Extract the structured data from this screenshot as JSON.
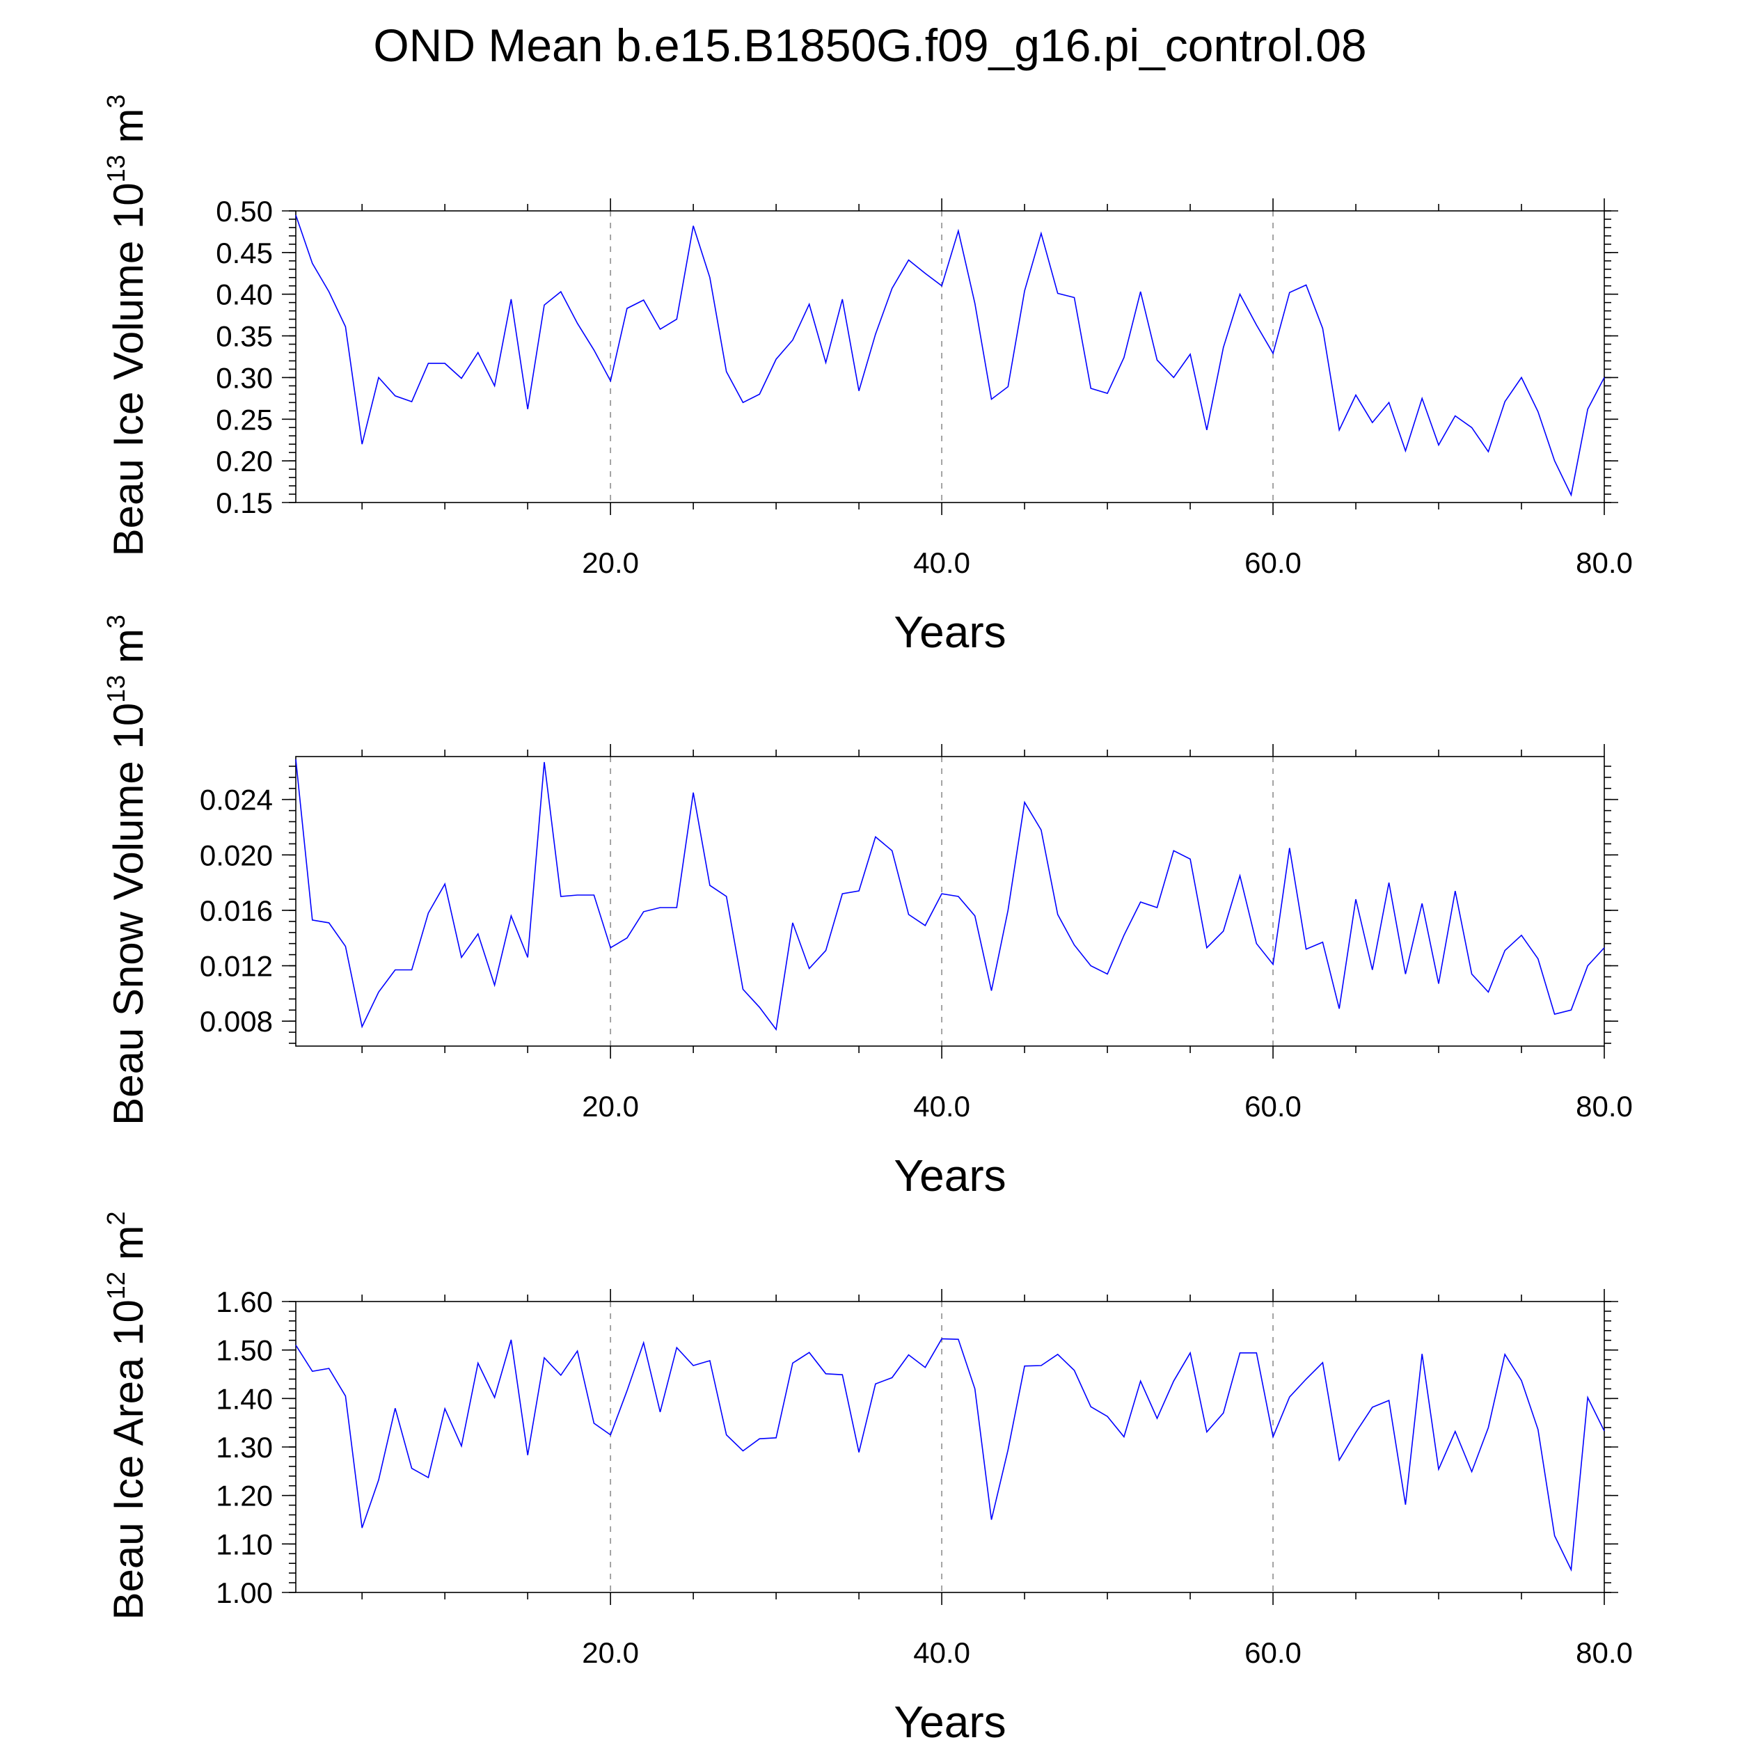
{
  "title": "OND Mean b.e15.B1850G.f09_g16.pi_control.08",
  "colors": {
    "series": "#0000ff",
    "grid": "#999999",
    "axis": "#000000"
  },
  "chart_data": [
    {
      "type": "line",
      "id": "ice-volume",
      "xlabel": "Years",
      "ylabel": {
        "main": "Beau Ice Volume 10",
        "sup": "13",
        "unit": " m",
        "unitsup": "3"
      },
      "xlim": [
        1,
        80
      ],
      "ylim": [
        0.15,
        0.5
      ],
      "yticks": [
        0.15,
        0.2,
        0.25,
        0.3,
        0.35,
        0.4,
        0.45,
        0.5
      ],
      "ytick_labels": [
        "0.15",
        "0.20",
        "0.25",
        "0.30",
        "0.35",
        "0.40",
        "0.45",
        "0.50"
      ],
      "xticks": [
        20,
        40,
        60,
        80
      ],
      "xtick_labels": [
        "20.0",
        "40.0",
        "60.0",
        "80.0"
      ],
      "values": [
        0.495,
        0.437,
        0.403,
        0.361,
        0.22,
        0.3,
        0.278,
        0.271,
        0.317,
        0.317,
        0.299,
        0.33,
        0.29,
        0.394,
        0.262,
        0.387,
        0.403,
        0.365,
        0.333,
        0.296,
        0.383,
        0.393,
        0.358,
        0.37,
        0.482,
        0.42,
        0.307,
        0.27,
        0.28,
        0.322,
        0.345,
        0.388,
        0.318,
        0.394,
        0.284,
        0.352,
        0.407,
        0.441,
        0.425,
        0.41,
        0.476,
        0.389,
        0.274,
        0.289,
        0.404,
        0.473,
        0.401,
        0.396,
        0.287,
        0.281,
        0.324,
        0.403,
        0.321,
        0.3,
        0.328,
        0.237,
        0.336,
        0.4,
        0.363,
        0.329,
        0.402,
        0.411,
        0.359,
        0.237,
        0.279,
        0.246,
        0.27,
        0.212,
        0.275,
        0.219,
        0.254,
        0.24,
        0.211,
        0.271,
        0.3,
        0.259,
        0.2,
        0.159,
        0.262,
        0.3
      ]
    },
    {
      "type": "line",
      "id": "snow-volume",
      "xlabel": "Years",
      "ylabel": {
        "main": "Beau Snow Volume 10",
        "sup": "13",
        "unit": " m",
        "unitsup": "3"
      },
      "xlim": [
        1,
        80
      ],
      "ylim": [
        0.0062,
        0.0271
      ],
      "yticks": [
        0.008,
        0.012,
        0.016,
        0.02,
        0.024
      ],
      "ytick_labels": [
        "0.008",
        "0.012",
        "0.016",
        "0.020",
        "0.024"
      ],
      "xticks": [
        20,
        40,
        60,
        80
      ],
      "xtick_labels": [
        "20.0",
        "40.0",
        "60.0",
        "80.0"
      ],
      "values": [
        0.0269,
        0.0153,
        0.0151,
        0.0134,
        0.0076,
        0.0101,
        0.0117,
        0.0117,
        0.0158,
        0.0179,
        0.0126,
        0.0143,
        0.0106,
        0.0156,
        0.0126,
        0.0267,
        0.017,
        0.0171,
        0.0171,
        0.0133,
        0.014,
        0.0159,
        0.0162,
        0.0162,
        0.0245,
        0.0178,
        0.017,
        0.0103,
        0.009,
        0.0074,
        0.0151,
        0.0118,
        0.0131,
        0.0172,
        0.0174,
        0.0213,
        0.0203,
        0.0157,
        0.0149,
        0.0172,
        0.017,
        0.0156,
        0.0102,
        0.016,
        0.0238,
        0.0218,
        0.0157,
        0.0135,
        0.012,
        0.0114,
        0.0142,
        0.0166,
        0.0162,
        0.0203,
        0.0197,
        0.0133,
        0.0145,
        0.0185,
        0.0136,
        0.0121,
        0.0205,
        0.0132,
        0.0137,
        0.0089,
        0.0168,
        0.0117,
        0.018,
        0.0114,
        0.0165,
        0.0107,
        0.0174,
        0.0114,
        0.0101,
        0.0131,
        0.0142,
        0.0125,
        0.0085,
        0.0088,
        0.012,
        0.0133
      ]
    },
    {
      "type": "line",
      "id": "ice-area",
      "xlabel": "Years",
      "ylabel": {
        "main": "Beau Ice Area 10",
        "sup": "12",
        "unit": " m",
        "unitsup": "2"
      },
      "xlim": [
        1,
        80
      ],
      "ylim": [
        1.0,
        1.6
      ],
      "yticks": [
        1.0,
        1.1,
        1.2,
        1.3,
        1.4,
        1.5,
        1.6
      ],
      "ytick_labels": [
        "1.00",
        "1.10",
        "1.20",
        "1.30",
        "1.40",
        "1.50",
        "1.60"
      ],
      "xticks": [
        20,
        40,
        60,
        80
      ],
      "xtick_labels": [
        "20.0",
        "40.0",
        "60.0",
        "80.0"
      ],
      "values": [
        1.51,
        1.456,
        1.462,
        1.405,
        1.133,
        1.232,
        1.38,
        1.256,
        1.237,
        1.379,
        1.302,
        1.473,
        1.402,
        1.521,
        1.283,
        1.484,
        1.448,
        1.498,
        1.349,
        1.325,
        1.416,
        1.515,
        1.372,
        1.505,
        1.468,
        1.478,
        1.325,
        1.292,
        1.317,
        1.319,
        1.473,
        1.495,
        1.451,
        1.449,
        1.289,
        1.43,
        1.443,
        1.49,
        1.464,
        1.523,
        1.522,
        1.42,
        1.15,
        1.294,
        1.467,
        1.468,
        1.491,
        1.458,
        1.383,
        1.363,
        1.321,
        1.436,
        1.359,
        1.436,
        1.494,
        1.331,
        1.37,
        1.494,
        1.494,
        1.321,
        1.403,
        1.44,
        1.474,
        1.273,
        1.33,
        1.382,
        1.396,
        1.181,
        1.492,
        1.254,
        1.332,
        1.249,
        1.34,
        1.491,
        1.437,
        1.336,
        1.117,
        1.047,
        1.402,
        1.333
      ]
    }
  ]
}
